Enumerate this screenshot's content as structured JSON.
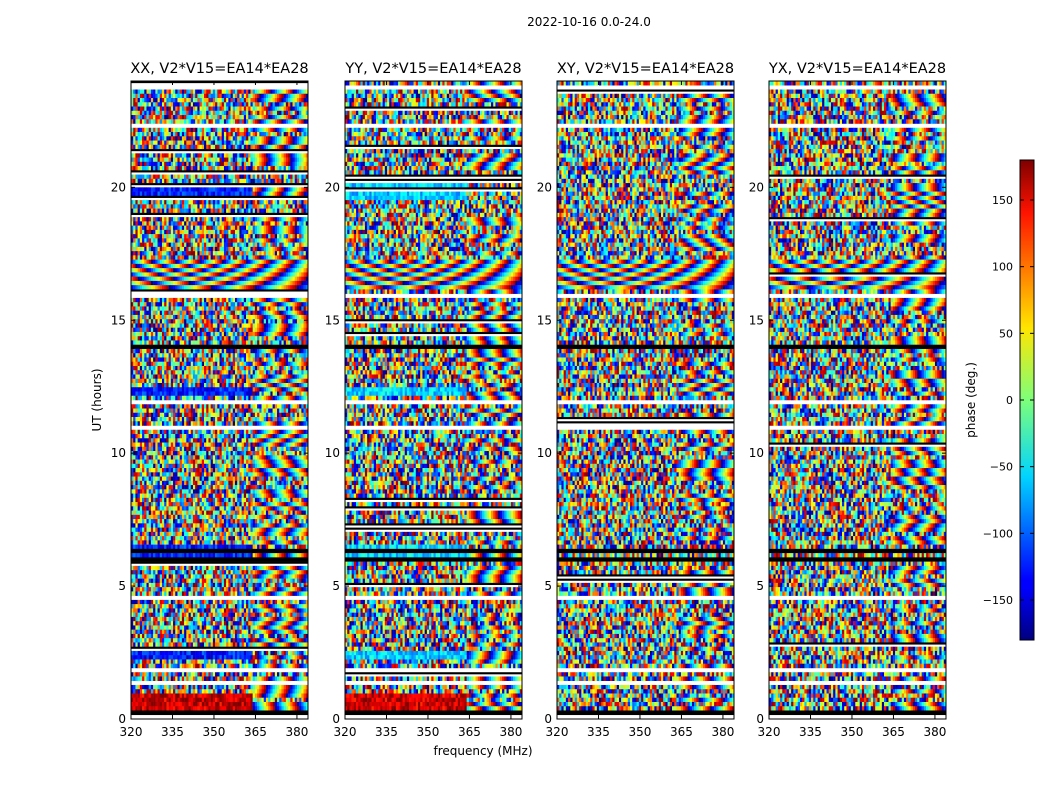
{
  "chart_data": {
    "type": "heatmap",
    "title": "2022-10-16 0.0-24.0",
    "xlabel": "frequency (MHz)",
    "ylabel": "UT (hours)",
    "xlim": [
      320,
      384
    ],
    "ylim": [
      0,
      24
    ],
    "x_ticks": [
      "320",
      "335",
      "350",
      "365",
      "380"
    ],
    "x_tick_values": [
      320,
      335,
      350,
      365,
      380
    ],
    "y_ticks": [
      "0",
      "5",
      "10",
      "15",
      "20"
    ],
    "y_tick_values": [
      0,
      5,
      10,
      15,
      20
    ],
    "panels": [
      {
        "title": "XX, V2*V15=EA14*EA28",
        "pol": "XX"
      },
      {
        "title": "YY, V2*V15=EA14*EA28",
        "pol": "YY"
      },
      {
        "title": "XY, V2*V15=EA14*EA28",
        "pol": "XY"
      },
      {
        "title": "YX, V2*V15=EA14*EA28",
        "pol": "YX"
      }
    ],
    "colorbar": {
      "label": "phase (deg.)",
      "range": [
        -180,
        180
      ],
      "ticks": [
        "150",
        "100",
        "50",
        "0",
        "−50",
        "−100",
        "−150"
      ],
      "tick_values": [
        150,
        100,
        50,
        0,
        -50,
        -100,
        -150
      ],
      "colormap": "jet"
    },
    "white_gap_hours": [
      23.7,
      22.35,
      16.0,
      12.0,
      10.9,
      4.5,
      1.8,
      1.3,
      0.1
    ],
    "black_flag_bands_hours": [
      [
        13.7,
        14.3
      ],
      [
        6.0,
        6.6
      ],
      [
        0.2,
        0.5
      ]
    ]
  }
}
